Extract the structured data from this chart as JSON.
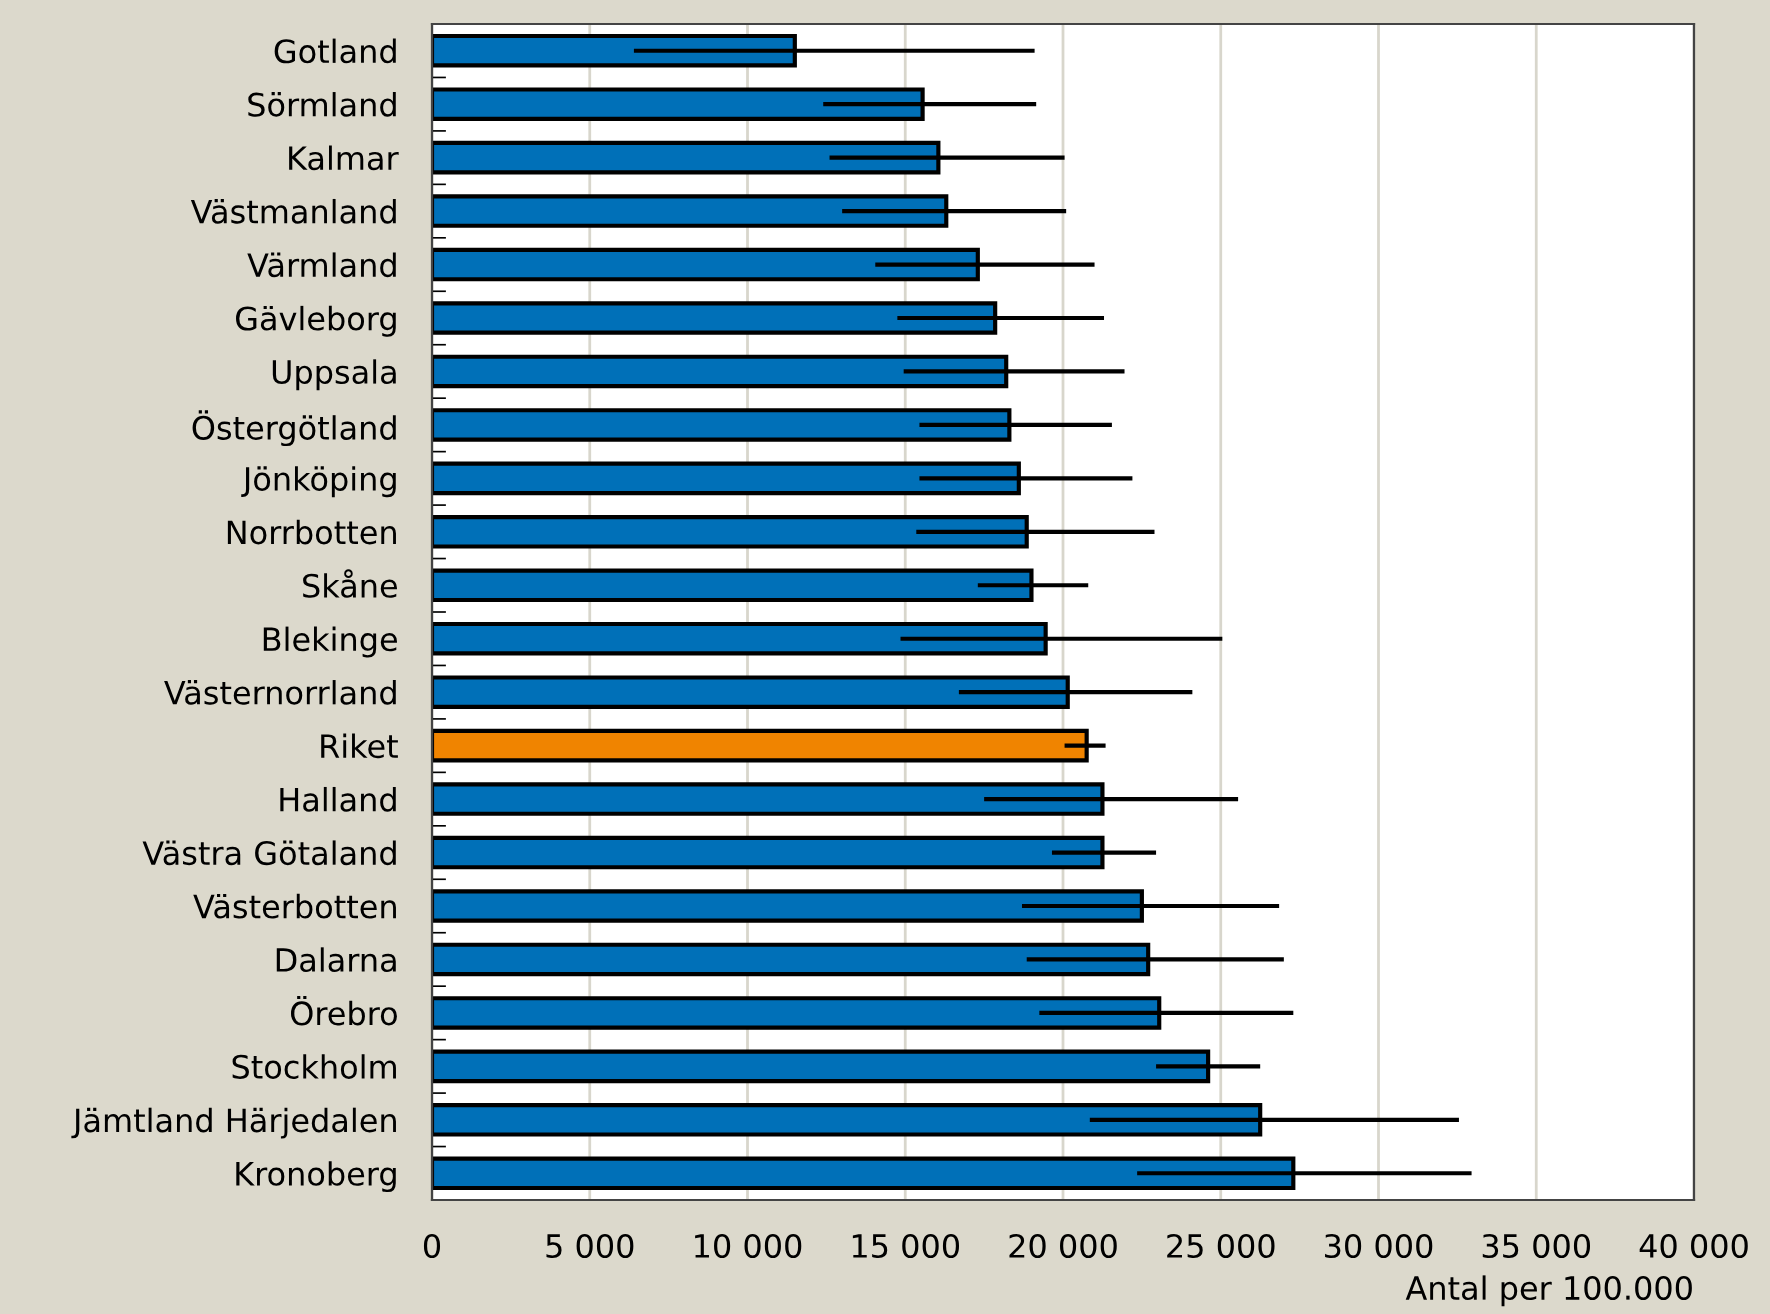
{
  "chart_data": {
    "type": "bar",
    "orientation": "horizontal",
    "xlabel": "Antal per 100.000",
    "categories": [
      "Gotland",
      "Sörmland",
      "Kalmar",
      "Västmanland",
      "Värmland",
      "Gävleborg",
      "Uppsala",
      "Östergötland",
      "Jönköping",
      "Norrbotten",
      "Skåne",
      "Blekinge",
      "Västernorrland",
      "Riket",
      "Halland",
      "Västra Götaland",
      "Västerbotten",
      "Dalarna",
      "Örebro",
      "Stockholm",
      "Jämtland Härjedalen",
      "Kronoberg"
    ],
    "values": [
      11500,
      15550,
      16050,
      16300,
      17300,
      17850,
      18200,
      18300,
      18600,
      18850,
      19000,
      19450,
      20150,
      20750,
      21250,
      21250,
      22500,
      22700,
      23050,
      24600,
      26250,
      27300
    ],
    "colors": [
      "#0070b8",
      "#0070b8",
      "#0070b8",
      "#0070b8",
      "#0070b8",
      "#0070b8",
      "#0070b8",
      "#0070b8",
      "#0070b8",
      "#0070b8",
      "#0070b8",
      "#0070b8",
      "#0070b8",
      "#f08400",
      "#0070b8",
      "#0070b8",
      "#0070b8",
      "#0070b8",
      "#0070b8",
      "#0070b8",
      "#0070b8",
      "#0070b8"
    ],
    "errors": [
      [
        6400,
        19100
      ],
      [
        12400,
        19150
      ],
      [
        12600,
        20050
      ],
      [
        13000,
        20100
      ],
      [
        14050,
        21000
      ],
      [
        14750,
        21300
      ],
      [
        14950,
        21950
      ],
      [
        15450,
        21550
      ],
      [
        15450,
        22200
      ],
      [
        15350,
        22900
      ],
      [
        17300,
        20800
      ],
      [
        14850,
        25050
      ],
      [
        16700,
        24100
      ],
      [
        20050,
        21350
      ],
      [
        17500,
        25550
      ],
      [
        19650,
        22950
      ],
      [
        18700,
        26850
      ],
      [
        18850,
        27000
      ],
      [
        19250,
        27300
      ],
      [
        22950,
        26250
      ],
      [
        20850,
        32550
      ],
      [
        22350,
        32950
      ]
    ],
    "xlim": [
      0,
      40000
    ],
    "xticks": [
      {
        "value": 0,
        "label": "0"
      },
      {
        "value": 5000,
        "label": "5 000"
      },
      {
        "value": 10000,
        "label": "10 000"
      },
      {
        "value": 15000,
        "label": "15 000"
      },
      {
        "value": 20000,
        "label": "20 000"
      },
      {
        "value": 25000,
        "label": "25 000"
      },
      {
        "value": 30000,
        "label": "30 000"
      },
      {
        "value": 35000,
        "label": "35 000"
      },
      {
        "value": 40000,
        "label": "40 000"
      }
    ],
    "grid": "x"
  }
}
